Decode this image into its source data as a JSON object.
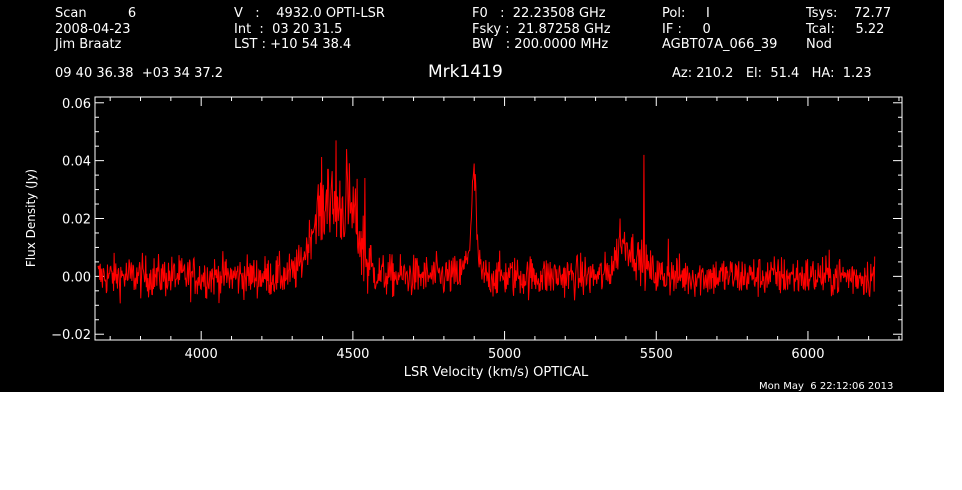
{
  "header": {
    "col1": [
      "Scan          6",
      "2008-04-23",
      "Jim Braatz"
    ],
    "col2": [
      "V   :    4932.0 OPTI-LSR",
      "Int  :  03 20 31.5",
      "LST : +10 54 38.4"
    ],
    "col3": [
      "F0   :  22.23508 GHz",
      "Fsky :  21.87258 GHz",
      "BW   : 200.0000 MHz"
    ],
    "col4": [
      "Pol:     I",
      "IF :     0",
      "AGBT07A_066_39"
    ],
    "col5": [
      "Tsys:    72.77",
      "Tcal:     5.22",
      "Nod"
    ],
    "coords": "09 40 36.38  +03 34 37.2",
    "object": "Mrk1419",
    "azelha": "Az: 210.2   El:  51.4   HA:  1.23",
    "date": "Mon May  6 22:12:06 2013"
  },
  "colors": {
    "background": "#000000",
    "axes": "#ffffff",
    "series": "#ff0000"
  },
  "chart_data": {
    "type": "line",
    "xlabel": "LSR Velocity (km/s) OPTICAL",
    "ylabel": "Flux Density (Jy)",
    "xlim": [
      3650,
      6310
    ],
    "ylim": [
      -0.022,
      0.062
    ],
    "x_ticks": [
      4000,
      4500,
      5000,
      5500,
      6000
    ],
    "x_tick_labels": [
      "4000",
      "4500",
      "5000",
      "5500",
      "6000"
    ],
    "y_ticks": [
      -0.02,
      0.0,
      0.02,
      0.04,
      0.06
    ],
    "y_tick_labels": [
      "−0.02",
      "0.00",
      "0.02",
      "0.04",
      "0.06"
    ],
    "grid": false,
    "series": [
      {
        "x_range": [
          3660,
          6220
        ],
        "baseline_noise_rms": 0.004,
        "peaks": [
          {
            "x": 4445,
            "y": 0.047
          },
          {
            "x": 4480,
            "y": 0.044
          },
          {
            "x": 4418,
            "y": 0.037
          },
          {
            "x": 4540,
            "y": 0.034
          },
          {
            "x": 4900,
            "y": 0.039
          },
          {
            "x": 5380,
            "y": 0.02
          },
          {
            "x": 5460,
            "y": 0.042
          },
          {
            "x": 5540,
            "y": 0.013
          }
        ]
      }
    ]
  }
}
